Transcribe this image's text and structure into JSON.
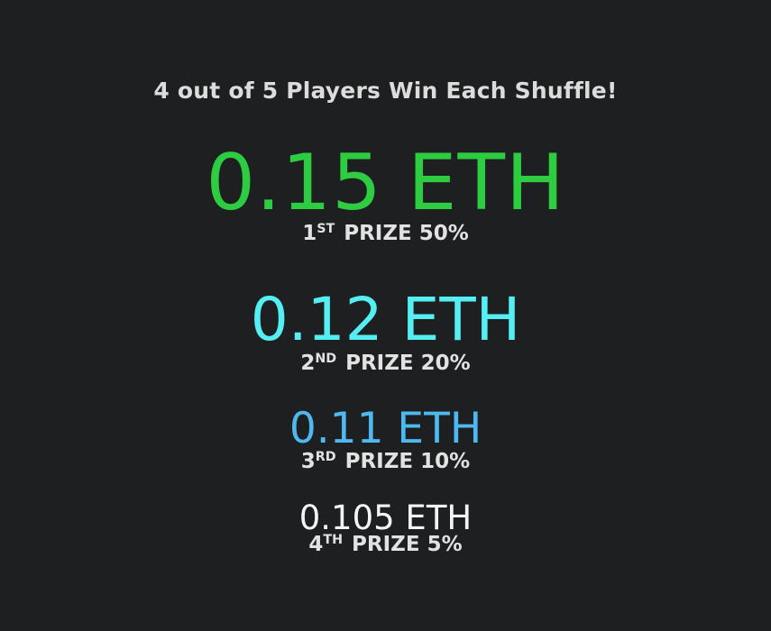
{
  "headline": "4 out of 5 Players Win Each Shuffle!",
  "prizes": [
    {
      "amount": "0.15 ETH",
      "rank_number": "1",
      "rank_suffix": "ST",
      "label": "PRIZE 50%",
      "color": "#2ecc40"
    },
    {
      "amount": "0.12 ETH",
      "rank_number": "2",
      "rank_suffix": "ND",
      "label": "PRIZE 20%",
      "color": "#55eef2"
    },
    {
      "amount": "0.11 ETH",
      "rank_number": "3",
      "rank_suffix": "RD",
      "label": "PRIZE 10%",
      "color": "#4eb8f0"
    },
    {
      "amount": "0.105 ETH",
      "rank_number": "4",
      "rank_suffix": "TH",
      "label": "PRIZE 5%",
      "color": "#f4f4f4"
    }
  ]
}
